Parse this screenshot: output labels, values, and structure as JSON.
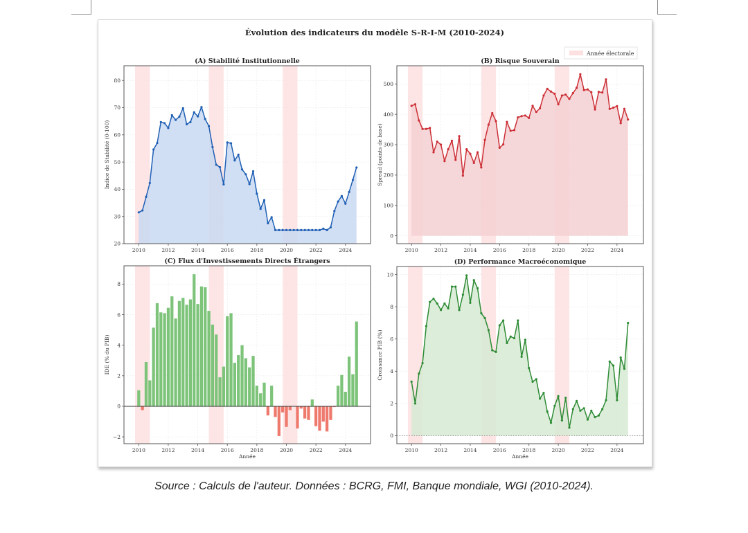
{
  "figure": {
    "title": "Évolution des indicateurs du modèle S-R-I-M (2010-2024)",
    "legend": {
      "label": "Année électorale",
      "color": "#fde0e0"
    },
    "caption": "Source : Calculs de l'auteur. Données : BCRG, FMI, Banque mondiale, WGI (2010-2024)."
  },
  "chart_data": [
    {
      "id": "A",
      "type": "area",
      "title": "(A) Stabilité Institutionnelle",
      "xlabel": "",
      "ylabel": "Indice de Stabilité (0-100)",
      "xlim": [
        2009.0,
        2025.7
      ],
      "ylim": [
        20,
        85.4
      ],
      "xticks": [
        2010,
        2012,
        2014,
        2016,
        2018,
        2020,
        2022,
        2024
      ],
      "yticks": [
        20,
        30,
        40,
        50,
        60,
        70,
        80
      ],
      "grid": true,
      "color": "#1f5fb4",
      "fill_color": "#c9d9f2",
      "fill_base": 20,
      "electoral_bands": [
        [
          2009.75,
          2010.75
        ],
        [
          2014.75,
          2015.75
        ],
        [
          2019.75,
          2020.75
        ]
      ],
      "x_start": 2010,
      "x_step": 0.25,
      "values": [
        31.5,
        32.2,
        37.2,
        42.3,
        54.6,
        57.0,
        64.7,
        64.3,
        62.5,
        67.2,
        65.5,
        66.7,
        69.8,
        63.9,
        64.7,
        68.3,
        66.8,
        70.2,
        65.8,
        63.2,
        55.5,
        49.0,
        48.1,
        41.8,
        57.2,
        56.9,
        50.6,
        52.7,
        47.3,
        45.5,
        41.9,
        46.6,
        38.4,
        32.8,
        36.0,
        27.5,
        29.7,
        25.0,
        25.0,
        25.0,
        25.0,
        25.0,
        25.0,
        25.0,
        25.0,
        25.0,
        25.0,
        25.0,
        25.0,
        25.0,
        25.5,
        25.0,
        26.0,
        32.0,
        35.5,
        37.5,
        34.7,
        39.0,
        43.4,
        48.0
      ]
    },
    {
      "id": "B",
      "type": "area",
      "title": "(B) Risque Souverain",
      "xlabel": "",
      "ylabel": "Spread (points de base)",
      "xlim": [
        2009.0,
        2025.8
      ],
      "ylim": [
        -26,
        560
      ],
      "xticks": [
        2010,
        2012,
        2014,
        2016,
        2018,
        2020,
        2022,
        2024
      ],
      "yticks": [
        0,
        100,
        200,
        300,
        400,
        500
      ],
      "grid": true,
      "color": "#cc2f36",
      "fill_color": "#f5d0d2",
      "fill_base": 0,
      "electoral_bands": [
        [
          2009.75,
          2010.75
        ],
        [
          2014.75,
          2015.75
        ],
        [
          2019.75,
          2020.75
        ]
      ],
      "x_start": 2010,
      "x_step": 0.25,
      "values": [
        428,
        433,
        380,
        352,
        352,
        355,
        275,
        310,
        300,
        246,
        285,
        313,
        250,
        328,
        198,
        285,
        270,
        240,
        275,
        225,
        316,
        366,
        404,
        378,
        290,
        301,
        375,
        346,
        348,
        390,
        394,
        396,
        388,
        428,
        408,
        420,
        462,
        484,
        475,
        468,
        433,
        462,
        465,
        451,
        470,
        487,
        532,
        480,
        482,
        473,
        416,
        474,
        472,
        515,
        418,
        422,
        427,
        371,
        418,
        383
      ]
    },
    {
      "id": "C",
      "type": "bar",
      "title": "(C) Flux d'Investissements Directs Étrangers",
      "xlabel": "Année",
      "ylabel": "IDE (% du PIB)",
      "xlim": [
        2009.0,
        2025.7
      ],
      "ylim": [
        -2.45,
        9.2
      ],
      "xticks": [
        2010,
        2012,
        2014,
        2016,
        2018,
        2020,
        2022,
        2024
      ],
      "yticks": [
        -2,
        0,
        2,
        4,
        6,
        8
      ],
      "grid": true,
      "positive_color": "#7dc47a",
      "negative_color": "#ee7a6e",
      "electoral_bands": [
        [
          2009.75,
          2010.75
        ],
        [
          2014.75,
          2015.75
        ],
        [
          2019.75,
          2020.75
        ]
      ],
      "x_start": 2010,
      "x_step": 0.25,
      "values": [
        1.05,
        -0.25,
        2.9,
        1.7,
        5.15,
        6.75,
        6.15,
        6.1,
        6.45,
        7.2,
        5.75,
        6.9,
        7.1,
        6.65,
        7.0,
        8.65,
        6.7,
        7.85,
        7.8,
        6.25,
        5.35,
        4.7,
        1.9,
        2.6,
        5.9,
        6.1,
        2.85,
        3.35,
        4.0,
        3.15,
        2.55,
        3.3,
        1.35,
        0.85,
        1.55,
        -0.6,
        1.35,
        -0.7,
        -1.95,
        -0.4,
        -1.35,
        -0.25,
        0.02,
        -1.45,
        -0.15,
        -0.8,
        -0.9,
        0.45,
        -1.3,
        -1.6,
        -1.0,
        -1.65,
        -0.9,
        -0.05,
        1.35,
        2.05,
        0.95,
        3.25,
        2.1,
        5.55
      ]
    },
    {
      "id": "D",
      "type": "area",
      "title": "(D) Performance Macroéconomique",
      "xlabel": "Année",
      "ylabel": "Croissance PIB (%)",
      "xlim": [
        2009.0,
        2025.8
      ],
      "ylim": [
        -0.5,
        10.5
      ],
      "xticks": [
        2010,
        2012,
        2014,
        2016,
        2018,
        2020,
        2022,
        2024
      ],
      "yticks": [
        0,
        2,
        4,
        6,
        8,
        10
      ],
      "grid": true,
      "color": "#2e8b35",
      "fill_color": "#d6ead3",
      "fill_base": 0,
      "zero_line": true,
      "electoral_bands": [
        [
          2009.75,
          2010.75
        ],
        [
          2014.75,
          2015.75
        ],
        [
          2019.75,
          2020.75
        ]
      ],
      "x_start": 2010,
      "x_step": 0.25,
      "values": [
        3.35,
        2.0,
        3.85,
        4.5,
        6.8,
        8.3,
        8.5,
        8.2,
        7.8,
        8.2,
        7.9,
        9.25,
        9.25,
        7.8,
        8.75,
        9.95,
        8.25,
        9.65,
        9.15,
        7.6,
        7.3,
        6.55,
        5.3,
        5.2,
        6.85,
        7.15,
        5.75,
        6.15,
        6.05,
        7.15,
        4.9,
        5.95,
        4.2,
        3.35,
        3.5,
        2.3,
        2.65,
        1.5,
        0.8,
        1.85,
        2.45,
        0.95,
        2.35,
        0.5,
        1.65,
        2.15,
        1.55,
        1.7,
        1.0,
        1.55,
        1.15,
        1.25,
        1.65,
        2.2,
        4.6,
        4.35,
        2.2,
        4.85,
        4.15,
        7.0
      ]
    }
  ]
}
